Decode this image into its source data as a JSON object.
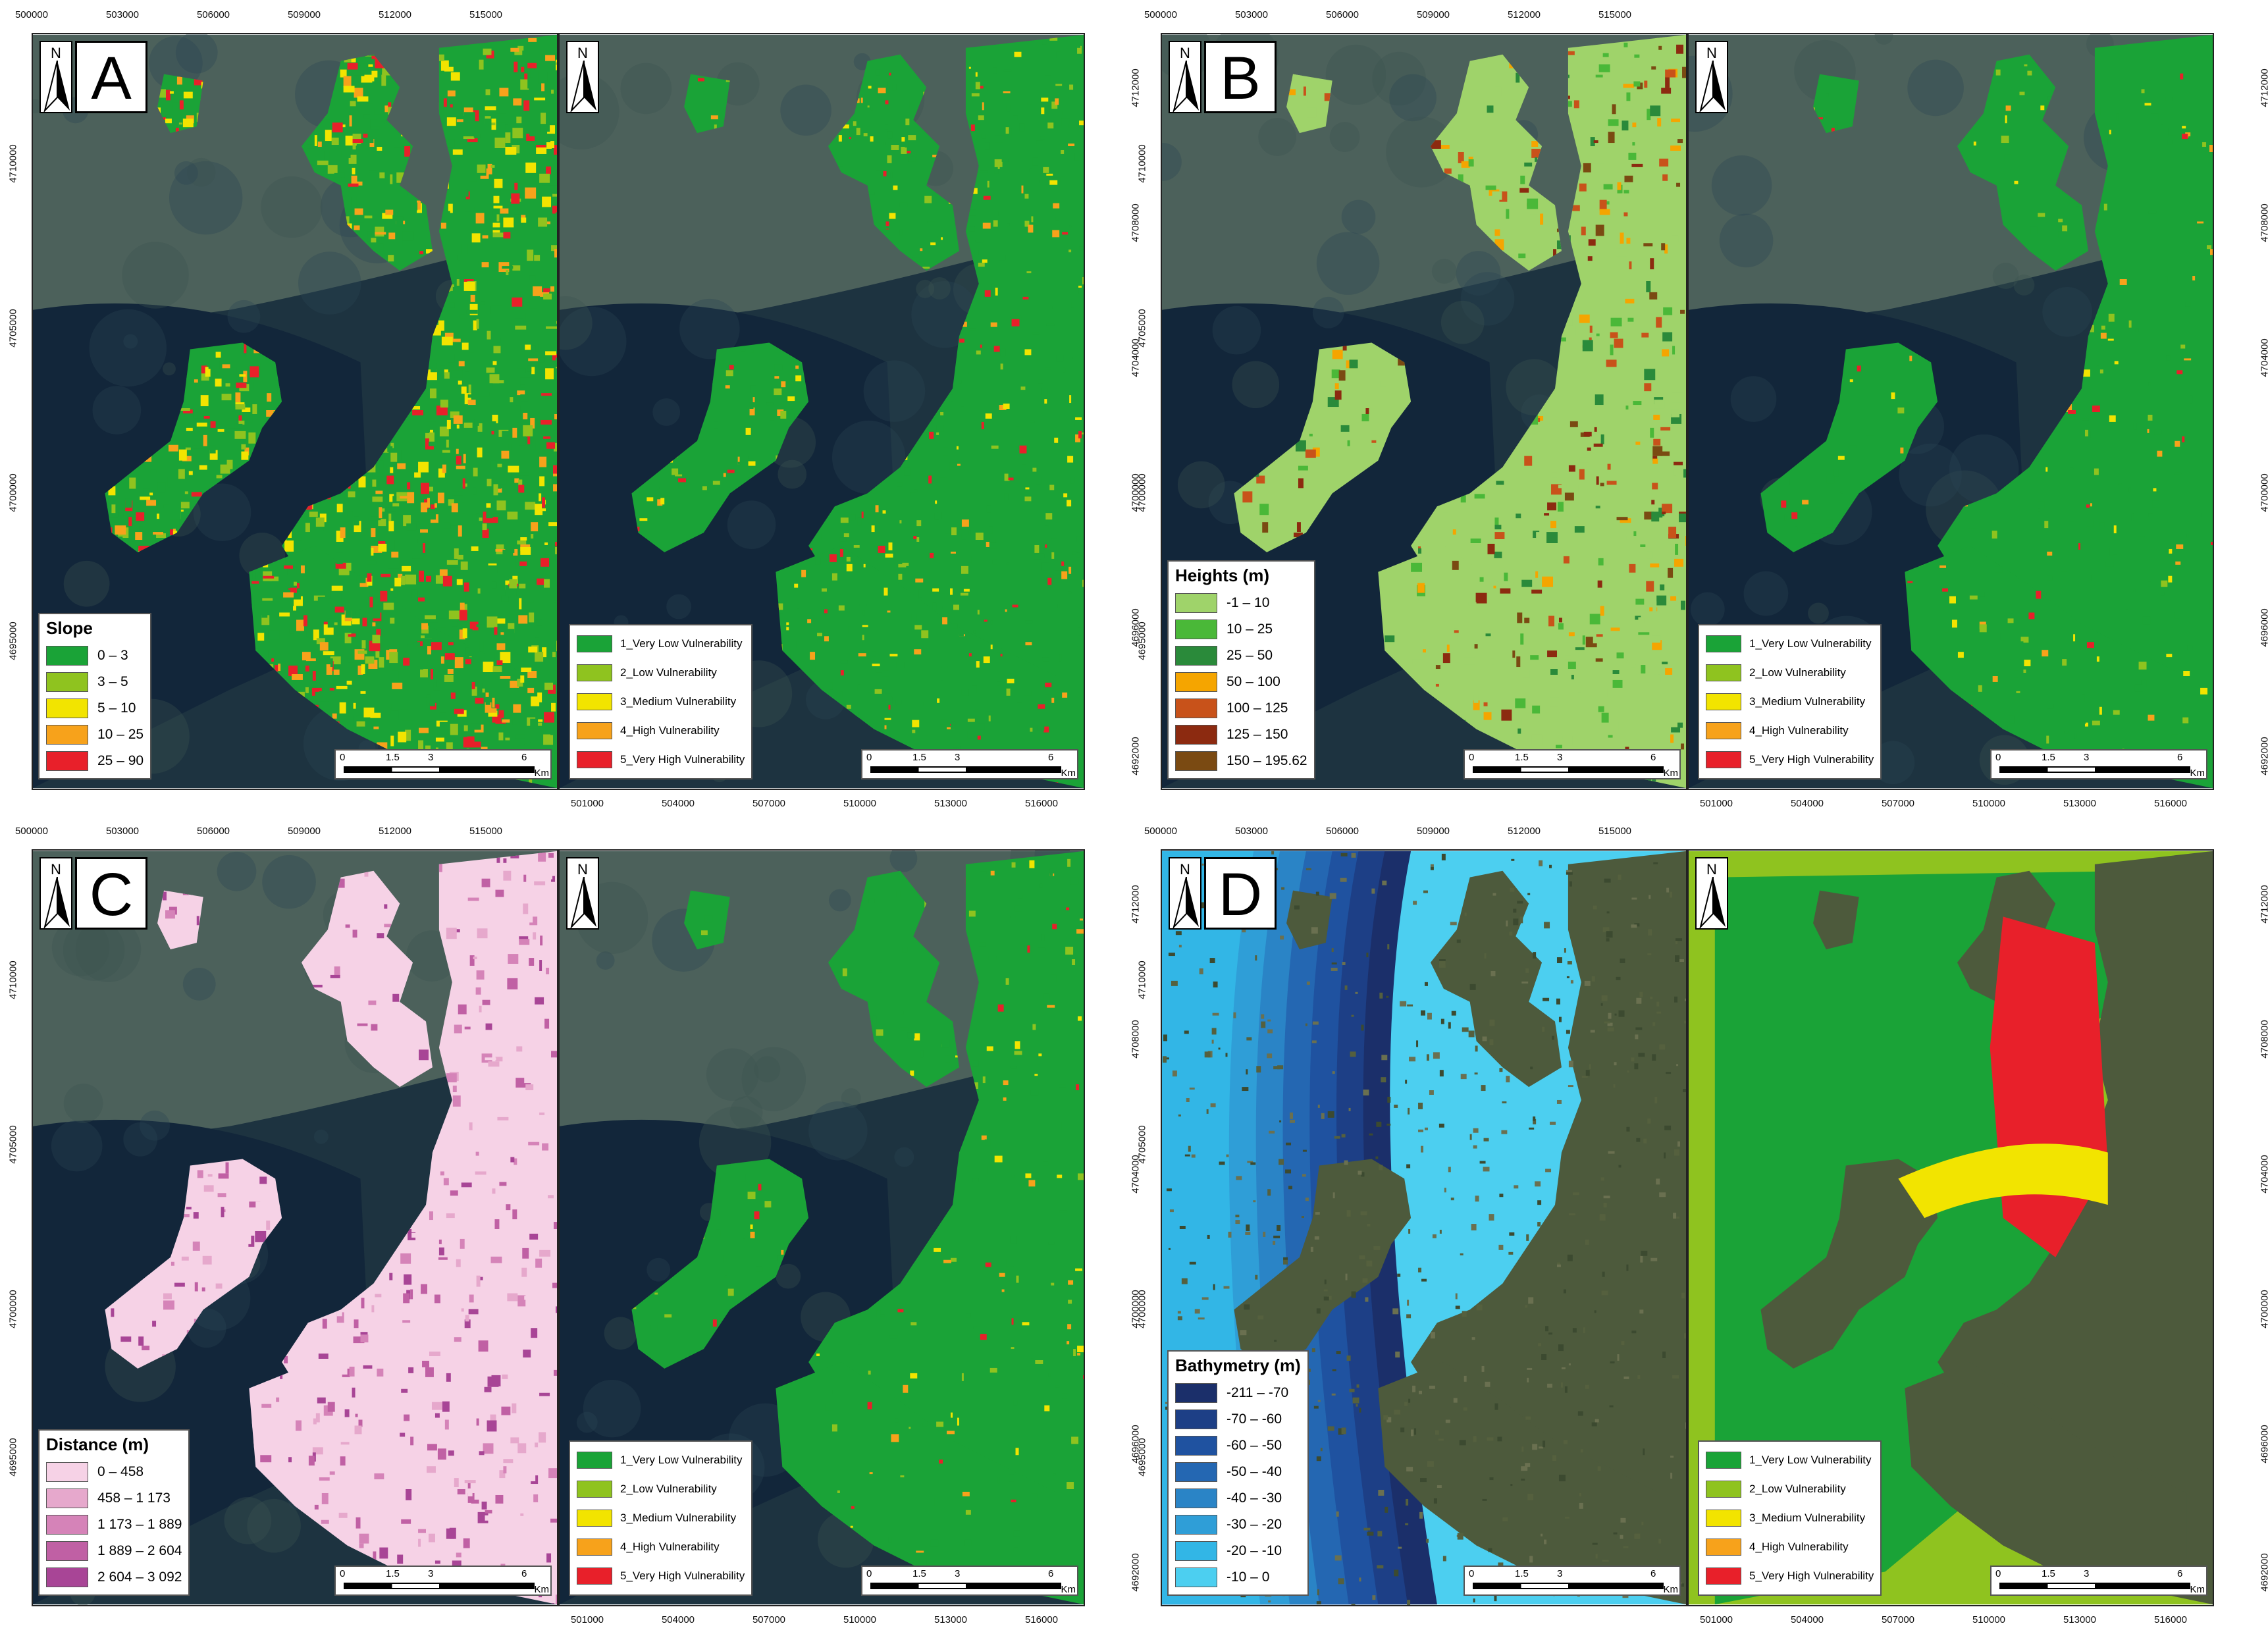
{
  "top_ticks": [
    "500000",
    "503000",
    "506000",
    "509000",
    "512000",
    "515000"
  ],
  "bottom_ticks": [
    "501000",
    "504000",
    "507000",
    "510000",
    "513000",
    "516000"
  ],
  "left_ticks": [
    "4710000",
    "4705000",
    "4700000",
    "4695000"
  ],
  "right_ticks": [
    "4712000",
    "4708000",
    "4704000",
    "4700000",
    "4696000",
    "4692000"
  ],
  "north_label": "N",
  "scale": {
    "t0": "0",
    "t1": "1.5",
    "t2": "3",
    "t3": "6",
    "unit": "Km"
  },
  "vulnerability_legend": [
    {
      "label": "1_Very Low Vulnerability",
      "color": "#1aa337"
    },
    {
      "label": "2_Low Vulnerability",
      "color": "#8fc31f"
    },
    {
      "label": "3_Medium Vulnerability",
      "color": "#f2e400"
    },
    {
      "label": "4_High Vulnerability",
      "color": "#f7a21b"
    },
    {
      "label": "5_Very High Vulnerability",
      "color": "#e8202a"
    }
  ],
  "panels": [
    {
      "letter": "A",
      "legend_title": "Slope",
      "legend": [
        {
          "label": "0 – 3",
          "color": "#1aa337"
        },
        {
          "label": "3 – 5",
          "color": "#8fc31f"
        },
        {
          "label": "5 – 10",
          "color": "#f2e400"
        },
        {
          "label": "10 – 25",
          "color": "#f7a21b"
        },
        {
          "label": "25 – 90",
          "color": "#e8202a"
        }
      ]
    },
    {
      "letter": "B",
      "legend_title": "Heights (m)",
      "legend": [
        {
          "label": "-1 – 10",
          "color": "#9fd36a"
        },
        {
          "label": "10 – 25",
          "color": "#4ab838"
        },
        {
          "label": "25 – 50",
          "color": "#2a8a3a"
        },
        {
          "label": "50 – 100",
          "color": "#f5a500"
        },
        {
          "label": "100 – 125",
          "color": "#c8521a"
        },
        {
          "label": "125 – 150",
          "color": "#8c2a10"
        },
        {
          "label": "150 – 195.62",
          "color": "#7a4a12"
        }
      ]
    },
    {
      "letter": "C",
      "legend_title": "Distance (m)",
      "legend": [
        {
          "label": "0 – 458",
          "color": "#f6d2e6"
        },
        {
          "label": "458 – 1 173",
          "color": "#e6a8cc"
        },
        {
          "label": "1 173 – 1 889",
          "color": "#d583b8"
        },
        {
          "label": "1 889 – 2 604",
          "color": "#c060a4"
        },
        {
          "label": "2 604 – 3 092",
          "color": "#a84596"
        }
      ]
    },
    {
      "letter": "D",
      "legend_title": "Bathymetry (m)",
      "legend": [
        {
          "label": "-211 – -70",
          "color": "#1b2f6a"
        },
        {
          "label": "-70 – -60",
          "color": "#1d3f86"
        },
        {
          "label": "-60 – -50",
          "color": "#1f52a0"
        },
        {
          "label": "-50 – -40",
          "color": "#2467b2"
        },
        {
          "label": "-40 – -30",
          "color": "#2a84c6"
        },
        {
          "label": "-30 – -20",
          "color": "#2f9ed7"
        },
        {
          "label": "-20 – -10",
          "color": "#32b6e6"
        },
        {
          "label": "-10 – 0",
          "color": "#4ccff0"
        }
      ]
    }
  ]
}
